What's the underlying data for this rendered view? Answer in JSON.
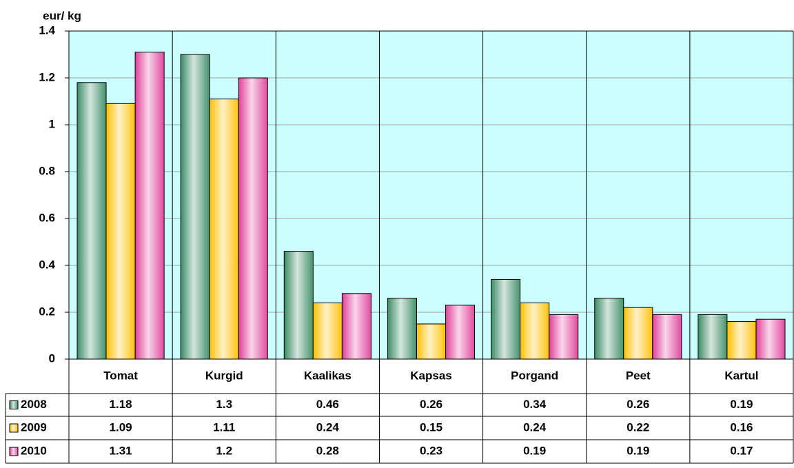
{
  "chart_data": {
    "type": "bar",
    "y_label": "eur/ kg",
    "categories": [
      "Tomat",
      "Kurgid",
      "Kaalikas",
      "Kapsas",
      "Porgand",
      "Peet",
      "Kartul"
    ],
    "series": [
      {
        "name": "2008",
        "color": "#3c8c64",
        "values": [
          1.18,
          1.3,
          0.46,
          0.26,
          0.34,
          0.26,
          0.19
        ]
      },
      {
        "name": "2009",
        "color": "#ffc000",
        "values": [
          1.09,
          1.11,
          0.24,
          0.15,
          0.24,
          0.22,
          0.16
        ]
      },
      {
        "name": "2010",
        "color": "#e0409a",
        "values": [
          1.31,
          1.2,
          0.28,
          0.23,
          0.19,
          0.19,
          0.17
        ]
      }
    ],
    "ylim": [
      0,
      1.4
    ],
    "yticks": [
      0,
      0.2,
      0.4,
      0.6,
      0.8,
      1,
      1.2,
      1.4
    ],
    "grid": true,
    "data_table": true
  }
}
